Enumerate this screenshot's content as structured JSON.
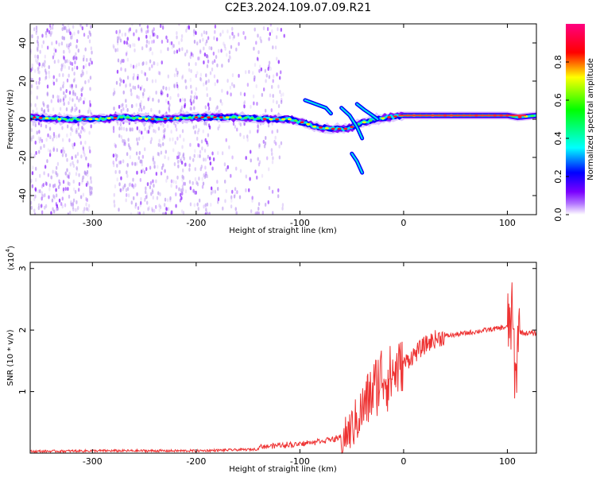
{
  "title": "C2E3.2024.109.07.09.R21",
  "chart_data": [
    {
      "type": "heatmap",
      "xlabel": "Height of straight line (km)",
      "ylabel": "Frequency (Hz)",
      "xlim": [
        -360,
        128
      ],
      "ylim": [
        -50,
        50
      ],
      "x_ticks": [
        -300,
        -200,
        -100,
        0,
        100
      ],
      "x_tick_labels": [
        "-300",
        "-200",
        "-100",
        "0",
        "100"
      ],
      "y_ticks": [
        -40,
        -20,
        0,
        20,
        40
      ],
      "y_tick_labels": [
        "-40",
        "-20",
        "0",
        "20",
        "40"
      ],
      "colorbar": {
        "label": "Normalized spectral amplitude",
        "range": [
          0,
          1
        ],
        "ticks": [
          0.0,
          0.2,
          0.4,
          0.6,
          0.8
        ],
        "tick_labels": [
          "0.0",
          "0.2",
          "0.4",
          "0.6",
          "0.8"
        ],
        "colors": [
          "#ffffff",
          "#7a00ff",
          "#0000ff",
          "#00ffff",
          "#00ff00",
          "#ffff00",
          "#ff0000",
          "#ff007f"
        ]
      },
      "signal_trace": {
        "x": [
          -360,
          -330,
          -300,
          -270,
          -240,
          -200,
          -160,
          -130,
          -110,
          -95,
          -85,
          -70,
          -55,
          -45,
          -35,
          -25,
          -15,
          0,
          50,
          80,
          100,
          110,
          128
        ],
        "y": [
          1,
          0,
          0,
          1,
          0,
          1,
          1,
          0,
          0,
          -2,
          -4,
          -5,
          -5,
          -3,
          -1,
          0,
          1,
          2,
          2,
          2,
          2,
          1,
          2
        ]
      },
      "side_tracks": [
        {
          "x": [
            -95,
            -85,
            -75,
            -70
          ],
          "y": [
            10,
            8,
            6,
            3
          ]
        },
        {
          "x": [
            -60,
            -52,
            -45,
            -40
          ],
          "y": [
            6,
            2,
            -4,
            -10
          ]
        },
        {
          "x": [
            -45,
            -38,
            -30,
            -25
          ],
          "y": [
            8,
            5,
            2,
            0
          ]
        },
        {
          "x": [
            -50,
            -45,
            -40
          ],
          "y": [
            -18,
            -22,
            -28
          ]
        }
      ],
      "grid": false
    },
    {
      "type": "line",
      "xlabel": "Height of straight line (km)",
      "ylabel": "SNR (10 * v/v)",
      "multiplier_label": "(x10",
      "multiplier_exponent": "4",
      "multiplier_close": ")",
      "xlim": [
        -360,
        128
      ],
      "ylim": [
        0,
        3.1
      ],
      "x_ticks": [
        -300,
        -200,
        -100,
        0,
        100
      ],
      "x_tick_labels": [
        "-300",
        "-200",
        "-100",
        "0",
        "100"
      ],
      "y_ticks": [
        1,
        2,
        3
      ],
      "y_tick_labels": [
        "1",
        "2",
        "3"
      ],
      "color": "#ee3333",
      "series": [
        {
          "x": [
            -360,
            -300,
            -250,
            -200,
            -150,
            -120,
            -100,
            -80,
            -60,
            -50,
            -40,
            -30,
            -20,
            -15,
            -10,
            0,
            10,
            20,
            30,
            40,
            60,
            80,
            100,
            105,
            108,
            110,
            115,
            128
          ],
          "y": [
            0.02,
            0.03,
            0.03,
            0.03,
            0.05,
            0.08,
            0.1,
            0.15,
            0.2,
            0.4,
            0.7,
            1.0,
            1.3,
            1.2,
            1.3,
            1.45,
            1.6,
            1.75,
            1.85,
            1.9,
            1.95,
            2.0,
            2.05,
            2.2,
            1.0,
            2.0,
            1.95,
            1.95
          ]
        }
      ],
      "grid": false
    }
  ]
}
